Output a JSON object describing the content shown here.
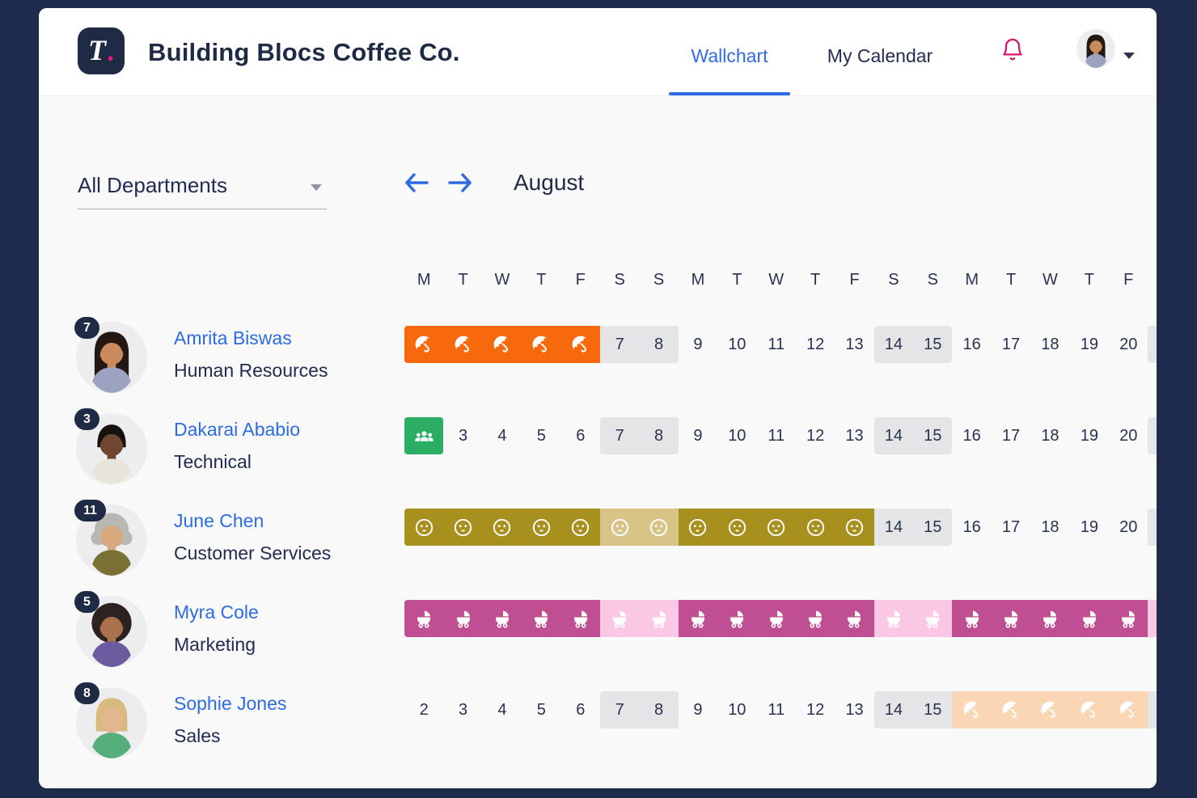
{
  "header": {
    "logo_letter": "T",
    "logo_dot": ".",
    "company_name": "Building Blocs Coffee Co.",
    "nav": [
      {
        "label": "Wallchart",
        "active": true
      },
      {
        "label": "My Calendar",
        "active": false
      }
    ],
    "user_avatar": {
      "hairstyle": "long",
      "hair": "#241812",
      "skin": "#C98A5E",
      "shirt": "#9BA3C0"
    }
  },
  "toolbar": {
    "department_filter": "All Departments",
    "month_label": "August"
  },
  "calendar": {
    "day_letters": [
      "M",
      "T",
      "W",
      "T",
      "F",
      "S",
      "S",
      "M",
      "T",
      "W",
      "T",
      "F",
      "S",
      "S",
      "M",
      "T",
      "W",
      "T",
      "F"
    ]
  },
  "colors": {
    "page_bg": "#1F2B4D",
    "card_bg": "#F9F9FA",
    "header_bg": "#FFFFFF",
    "accent_blue": "#2E6BE4",
    "text_dark": "#1F2A44",
    "bell_pink": "#D6176B",
    "badge_navy": "#1F2A44",
    "cell_weekend": "#E5E5E7",
    "leave_vacation": "#F8690D",
    "leave_meeting": "#2BAD64",
    "leave_sick": "#A8901F",
    "leave_sick_weekend": "#D9C488",
    "leave_maternity": "#C04E92",
    "leave_maternity_weekend": "#FAC8E5",
    "leave_pending": "#FBD6B4"
  },
  "people": [
    {
      "badge": "7",
      "name": "Amrita Biswas",
      "department": "Human Resources",
      "avatar": {
        "hairstyle": "long",
        "hair": "#241812",
        "skin": "#C98A5E",
        "shirt": "#9BA3C0"
      },
      "cells": [
        {
          "icon": "umbrella",
          "bg": "leave_vacation"
        },
        {
          "icon": "umbrella",
          "bg": "leave_vacation"
        },
        {
          "icon": "umbrella",
          "bg": "leave_vacation"
        },
        {
          "icon": "umbrella",
          "bg": "leave_vacation"
        },
        {
          "icon": "umbrella",
          "bg": "leave_vacation"
        },
        {
          "label": "7",
          "bg": "cell_weekend"
        },
        {
          "label": "8",
          "bg": "cell_weekend"
        },
        {
          "label": "9"
        },
        {
          "label": "10"
        },
        {
          "label": "11"
        },
        {
          "label": "12"
        },
        {
          "label": "13"
        },
        {
          "label": "14",
          "bg": "cell_weekend"
        },
        {
          "label": "15",
          "bg": "cell_weekend"
        },
        {
          "label": "16"
        },
        {
          "label": "17"
        },
        {
          "label": "18"
        },
        {
          "label": "19"
        },
        {
          "label": "20"
        },
        {
          "bg": "cell_weekend"
        }
      ]
    },
    {
      "badge": "3",
      "name": "Dakarai Ababio",
      "department": "Technical",
      "avatar": {
        "hairstyle": "short",
        "hair": "#17110D",
        "skin": "#6E4631",
        "shirt": "#E9E4DA"
      },
      "cells": [
        {
          "icon": "team",
          "bg": "leave_meeting"
        },
        {
          "label": "3"
        },
        {
          "label": "4"
        },
        {
          "label": "5"
        },
        {
          "label": "6"
        },
        {
          "label": "7",
          "bg": "cell_weekend"
        },
        {
          "label": "8",
          "bg": "cell_weekend"
        },
        {
          "label": "9"
        },
        {
          "label": "10"
        },
        {
          "label": "11"
        },
        {
          "label": "12"
        },
        {
          "label": "13"
        },
        {
          "label": "14",
          "bg": "cell_weekend"
        },
        {
          "label": "15",
          "bg": "cell_weekend"
        },
        {
          "label": "16"
        },
        {
          "label": "17"
        },
        {
          "label": "18"
        },
        {
          "label": "19"
        },
        {
          "label": "20"
        },
        {
          "bg": "cell_weekend"
        }
      ]
    },
    {
      "badge": "11",
      "name": "June Chen",
      "department": "Customer Services",
      "avatar": {
        "hairstyle": "curly",
        "hair": "#B9B7B4",
        "skin": "#D7A77E",
        "shirt": "#7A7034"
      },
      "cells": [
        {
          "icon": "sick-face",
          "bg": "leave_sick"
        },
        {
          "icon": "sick-face",
          "bg": "leave_sick"
        },
        {
          "icon": "sick-face",
          "bg": "leave_sick"
        },
        {
          "icon": "sick-face",
          "bg": "leave_sick"
        },
        {
          "icon": "sick-face",
          "bg": "leave_sick"
        },
        {
          "icon": "sick-face",
          "bg": "leave_sick_weekend"
        },
        {
          "icon": "sick-face",
          "bg": "leave_sick_weekend"
        },
        {
          "icon": "sick-face",
          "bg": "leave_sick"
        },
        {
          "icon": "sick-face",
          "bg": "leave_sick"
        },
        {
          "icon": "sick-face",
          "bg": "leave_sick"
        },
        {
          "icon": "sick-face",
          "bg": "leave_sick"
        },
        {
          "icon": "sick-face",
          "bg": "leave_sick"
        },
        {
          "label": "14",
          "bg": "cell_weekend"
        },
        {
          "label": "15",
          "bg": "cell_weekend"
        },
        {
          "label": "16"
        },
        {
          "label": "17"
        },
        {
          "label": "18"
        },
        {
          "label": "19"
        },
        {
          "label": "20"
        },
        {
          "bg": "cell_weekend"
        }
      ]
    },
    {
      "badge": "5",
      "name": "Myra Cole",
      "department": "Marketing",
      "avatar": {
        "hairstyle": "afro",
        "hair": "#2C2320",
        "skin": "#A9714C",
        "shirt": "#6C5B9E"
      },
      "cells": [
        {
          "icon": "stroller",
          "bg": "leave_maternity"
        },
        {
          "icon": "stroller",
          "bg": "leave_maternity"
        },
        {
          "icon": "stroller",
          "bg": "leave_maternity"
        },
        {
          "icon": "stroller",
          "bg": "leave_maternity"
        },
        {
          "icon": "stroller",
          "bg": "leave_maternity"
        },
        {
          "icon": "stroller",
          "bg": "leave_maternity_weekend"
        },
        {
          "icon": "stroller",
          "bg": "leave_maternity_weekend"
        },
        {
          "icon": "stroller",
          "bg": "leave_maternity"
        },
        {
          "icon": "stroller",
          "bg": "leave_maternity"
        },
        {
          "icon": "stroller",
          "bg": "leave_maternity"
        },
        {
          "icon": "stroller",
          "bg": "leave_maternity"
        },
        {
          "icon": "stroller",
          "bg": "leave_maternity"
        },
        {
          "icon": "stroller",
          "bg": "leave_maternity_weekend"
        },
        {
          "icon": "stroller",
          "bg": "leave_maternity_weekend"
        },
        {
          "icon": "stroller",
          "bg": "leave_maternity"
        },
        {
          "icon": "stroller",
          "bg": "leave_maternity"
        },
        {
          "icon": "stroller",
          "bg": "leave_maternity"
        },
        {
          "icon": "stroller",
          "bg": "leave_maternity"
        },
        {
          "icon": "stroller",
          "bg": "leave_maternity"
        },
        {
          "bg": "leave_maternity_weekend"
        }
      ]
    },
    {
      "badge": "8",
      "name": "Sophie Jones",
      "department": "Sales",
      "avatar": {
        "hairstyle": "bob",
        "hair": "#D9B97C",
        "skin": "#E3B68F",
        "shirt": "#56AE7C"
      },
      "cells": [
        {
          "label": "2"
        },
        {
          "label": "3"
        },
        {
          "label": "4"
        },
        {
          "label": "5"
        },
        {
          "label": "6"
        },
        {
          "label": "7",
          "bg": "cell_weekend"
        },
        {
          "label": "8",
          "bg": "cell_weekend"
        },
        {
          "label": "9"
        },
        {
          "label": "10"
        },
        {
          "label": "11"
        },
        {
          "label": "12"
        },
        {
          "label": "13"
        },
        {
          "label": "14",
          "bg": "cell_weekend"
        },
        {
          "label": "15",
          "bg": "cell_weekend"
        },
        {
          "icon": "umbrella",
          "bg": "leave_pending"
        },
        {
          "icon": "umbrella",
          "bg": "leave_pending"
        },
        {
          "icon": "umbrella",
          "bg": "leave_pending"
        },
        {
          "icon": "umbrella",
          "bg": "leave_pending"
        },
        {
          "icon": "umbrella",
          "bg": "leave_pending"
        },
        {
          "bg": "cell_weekend"
        }
      ]
    }
  ]
}
